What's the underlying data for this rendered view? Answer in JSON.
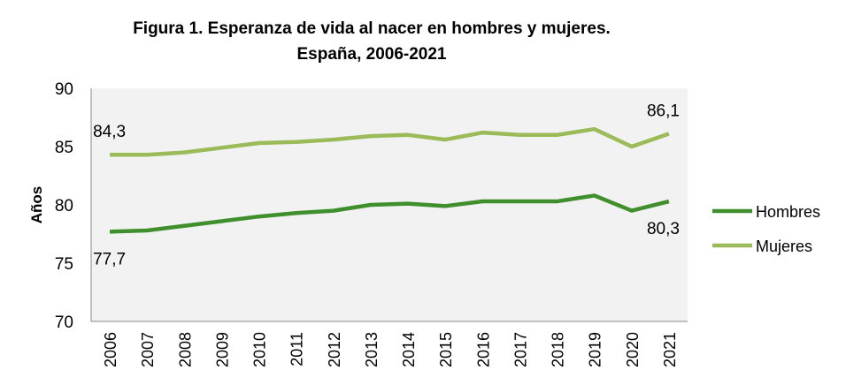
{
  "chart_data": {
    "type": "line",
    "title": "Figura 1. Esperanza de vida al nacer en hombres y mujeres.",
    "subtitle": "España, 2006-2021",
    "xlabel": "",
    "ylabel": "Años",
    "ylim": [
      70,
      90
    ],
    "yticks": [
      "70",
      "75",
      "80",
      "85",
      "90"
    ],
    "categories": [
      "2006",
      "2007",
      "2008",
      "2009",
      "2010",
      "2011",
      "2012",
      "2013",
      "2014",
      "2015",
      "2016",
      "2017",
      "2018",
      "2019",
      "2020",
      "2021"
    ],
    "grid": false,
    "legend": "right",
    "background": "#f2f2f2",
    "series": [
      {
        "name": "Hombres",
        "color": "#3f8f2c",
        "values": [
          77.7,
          77.8,
          78.2,
          78.6,
          79.0,
          79.3,
          79.5,
          80.0,
          80.1,
          79.9,
          80.3,
          80.3,
          80.3,
          80.8,
          79.5,
          80.3
        ]
      },
      {
        "name": "Mujeres",
        "color": "#9bbb59",
        "values": [
          84.3,
          84.3,
          84.5,
          84.9,
          85.3,
          85.4,
          85.6,
          85.9,
          86.0,
          85.6,
          86.2,
          86.0,
          86.0,
          86.5,
          85.0,
          86.1
        ]
      }
    ],
    "annotations": [
      {
        "series": "Hombres",
        "category": "2006",
        "text": "77,7"
      },
      {
        "series": "Hombres",
        "category": "2021",
        "text": "80,3"
      },
      {
        "series": "Mujeres",
        "category": "2006",
        "text": "84,3"
      },
      {
        "series": "Mujeres",
        "category": "2021",
        "text": "86,1"
      }
    ]
  }
}
